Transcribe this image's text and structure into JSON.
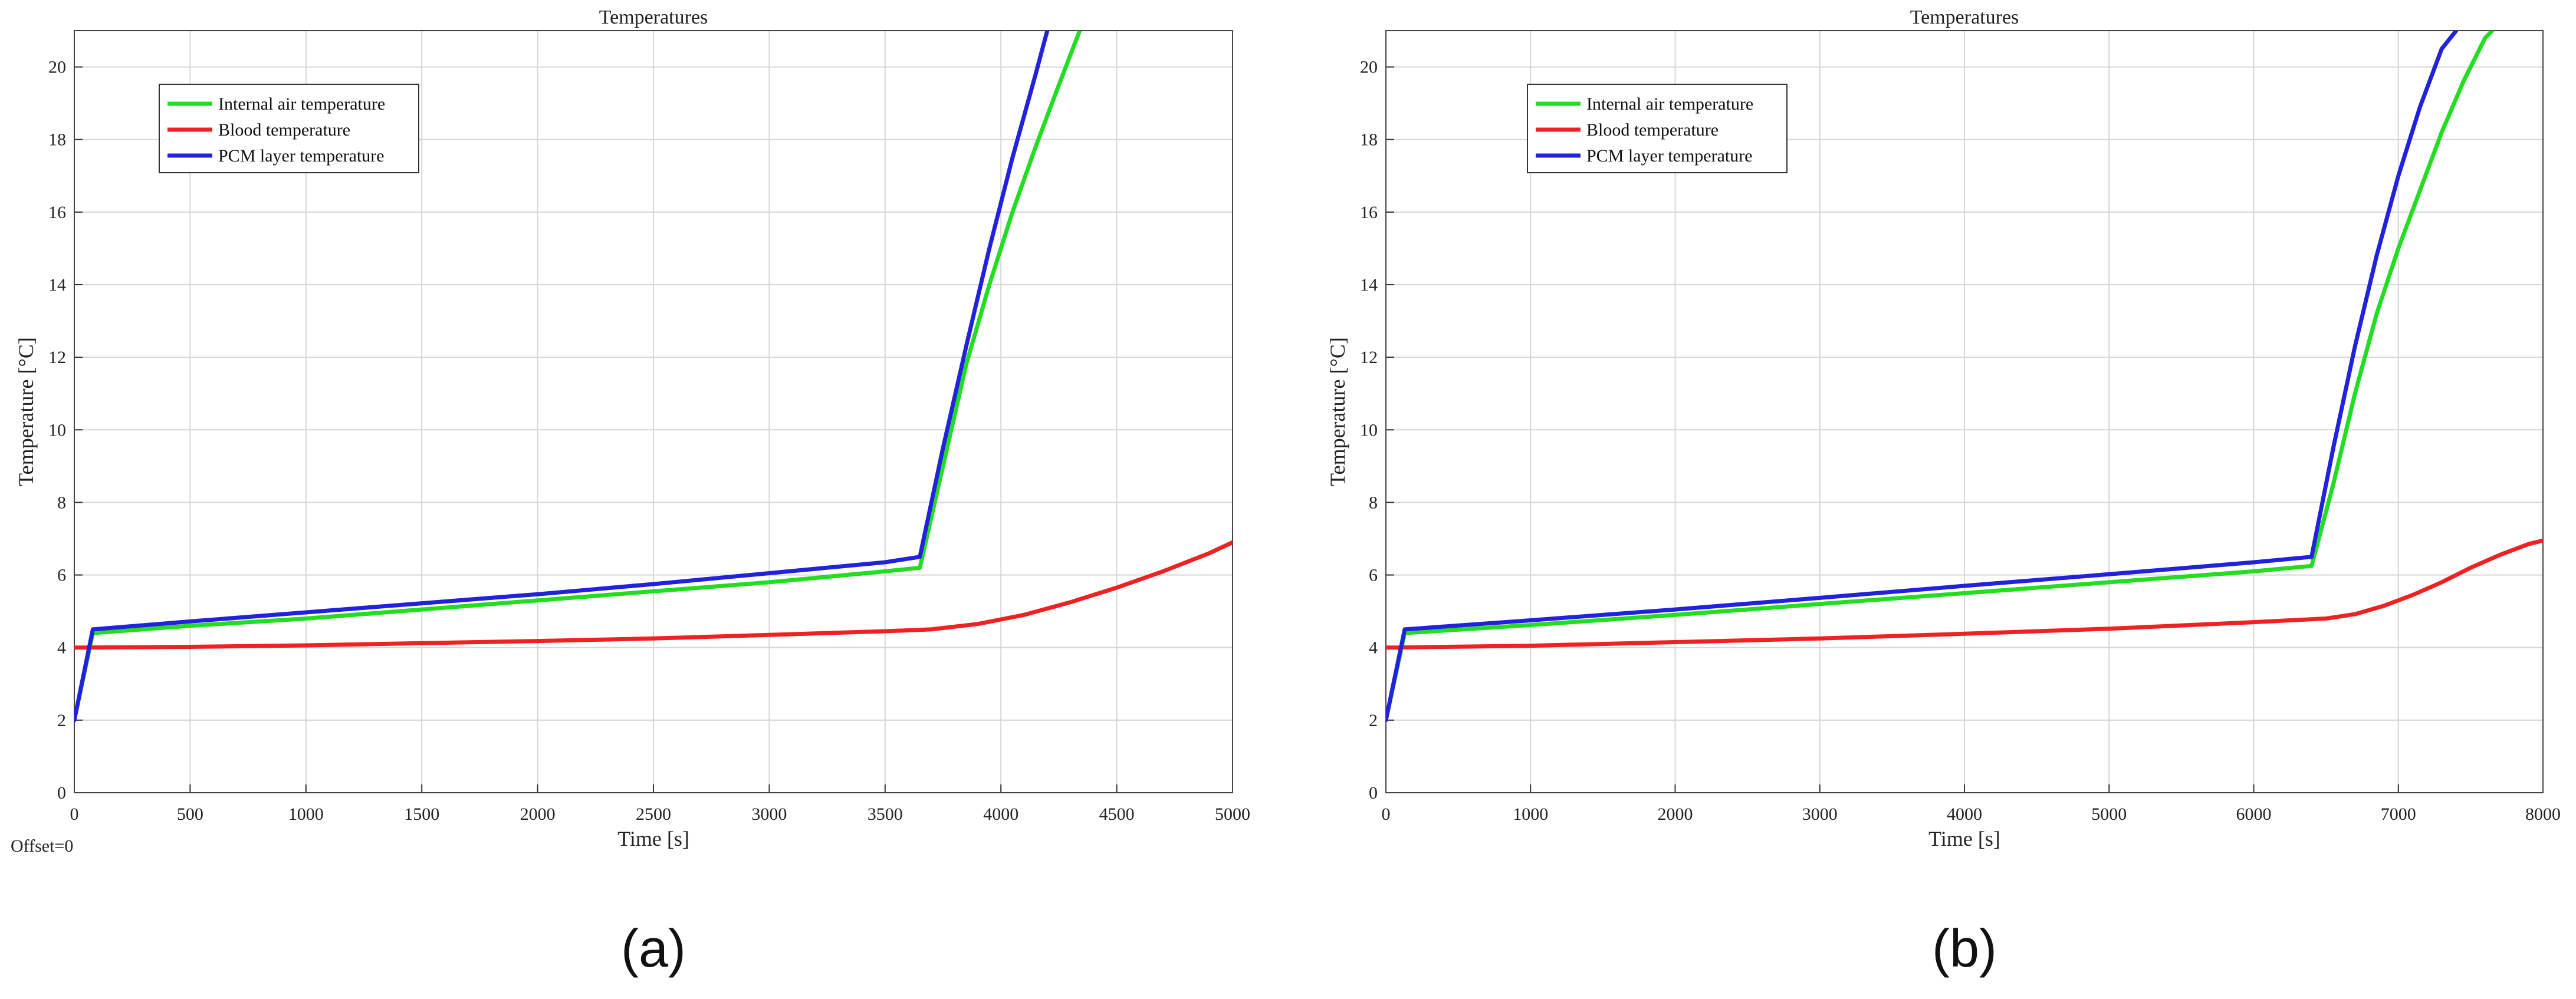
{
  "chart_data": [
    {
      "type": "line",
      "title": "Temperatures",
      "xlabel": "Time [s]",
      "ylabel": "Temperature [°C]",
      "xlim": [
        0,
        5000
      ],
      "ylim": [
        0,
        21
      ],
      "xticks": [
        0,
        500,
        1000,
        1500,
        2000,
        2500,
        3000,
        3500,
        4000,
        4500,
        5000
      ],
      "yticks": [
        0,
        2,
        4,
        6,
        8,
        10,
        12,
        14,
        16,
        18,
        20
      ],
      "grid": true,
      "legend_position": "top-left",
      "panel_label": "(a)",
      "note": "Offset=0",
      "series": [
        {
          "name": "Internal air temperature",
          "color": "#22dd22",
          "x": [
            0,
            80,
            500,
            1000,
            1500,
            2000,
            2500,
            3000,
            3500,
            3650,
            3750,
            3850,
            3950,
            4050,
            4150,
            4250,
            4340
          ],
          "y": [
            2.0,
            4.4,
            4.6,
            4.8,
            5.05,
            5.3,
            5.55,
            5.8,
            6.1,
            6.2,
            9.0,
            11.8,
            14.0,
            16.0,
            17.8,
            19.5,
            21.0
          ]
        },
        {
          "name": "Blood temperature",
          "color": "#ee2222",
          "x": [
            0,
            30,
            500,
            1000,
            1500,
            2000,
            2500,
            3000,
            3500,
            3700,
            3900,
            4100,
            4300,
            4500,
            4700,
            4900,
            5000
          ],
          "y": [
            4.0,
            4.0,
            4.02,
            4.06,
            4.12,
            4.18,
            4.25,
            4.35,
            4.45,
            4.5,
            4.65,
            4.9,
            5.25,
            5.65,
            6.1,
            6.6,
            6.9
          ]
        },
        {
          "name": "PCM layer temperature",
          "color": "#2222dd",
          "x": [
            0,
            80,
            500,
            1000,
            1500,
            2000,
            2500,
            3000,
            3500,
            3650,
            3750,
            3850,
            3950,
            4050,
            4150,
            4200
          ],
          "y": [
            2.0,
            4.5,
            4.72,
            4.97,
            5.22,
            5.47,
            5.75,
            6.05,
            6.35,
            6.5,
            9.5,
            12.3,
            15.0,
            17.5,
            19.8,
            21.0
          ]
        }
      ]
    },
    {
      "type": "line",
      "title": "Temperatures",
      "xlabel": "Time [s]",
      "ylabel": "Temperature [°C]",
      "xlim": [
        0,
        8000
      ],
      "ylim": [
        0,
        21
      ],
      "xticks": [
        0,
        1000,
        2000,
        3000,
        4000,
        5000,
        6000,
        7000,
        8000
      ],
      "yticks": [
        0,
        2,
        4,
        6,
        8,
        10,
        12,
        14,
        16,
        18,
        20
      ],
      "grid": true,
      "legend_position": "top-left",
      "panel_label": "(b)",
      "series": [
        {
          "name": "Internal air temperature",
          "color": "#22dd22",
          "x": [
            0,
            130,
            1000,
            2000,
            3000,
            4000,
            5000,
            6000,
            6400,
            6550,
            6700,
            6850,
            7000,
            7150,
            7300,
            7450,
            7600,
            7650
          ],
          "y": [
            2.0,
            4.4,
            4.62,
            4.9,
            5.2,
            5.5,
            5.8,
            6.1,
            6.25,
            8.5,
            11.0,
            13.2,
            15.0,
            16.6,
            18.2,
            19.6,
            20.8,
            21.0
          ]
        },
        {
          "name": "Blood temperature",
          "color": "#ee2222",
          "x": [
            0,
            60,
            1000,
            2000,
            3000,
            4000,
            5000,
            6000,
            6500,
            6700,
            6900,
            7100,
            7300,
            7500,
            7700,
            7900,
            8000
          ],
          "y": [
            4.0,
            4.0,
            4.05,
            4.15,
            4.25,
            4.38,
            4.52,
            4.7,
            4.8,
            4.92,
            5.15,
            5.45,
            5.8,
            6.2,
            6.55,
            6.85,
            6.95
          ]
        },
        {
          "name": "PCM layer temperature",
          "color": "#2222dd",
          "x": [
            0,
            130,
            1000,
            2000,
            3000,
            4000,
            5000,
            6000,
            6400,
            6550,
            6700,
            6850,
            7000,
            7150,
            7300,
            7400
          ],
          "y": [
            2.0,
            4.5,
            4.75,
            5.05,
            5.37,
            5.7,
            6.02,
            6.35,
            6.5,
            9.5,
            12.3,
            14.8,
            17.0,
            18.9,
            20.5,
            21.0
          ]
        }
      ]
    }
  ]
}
